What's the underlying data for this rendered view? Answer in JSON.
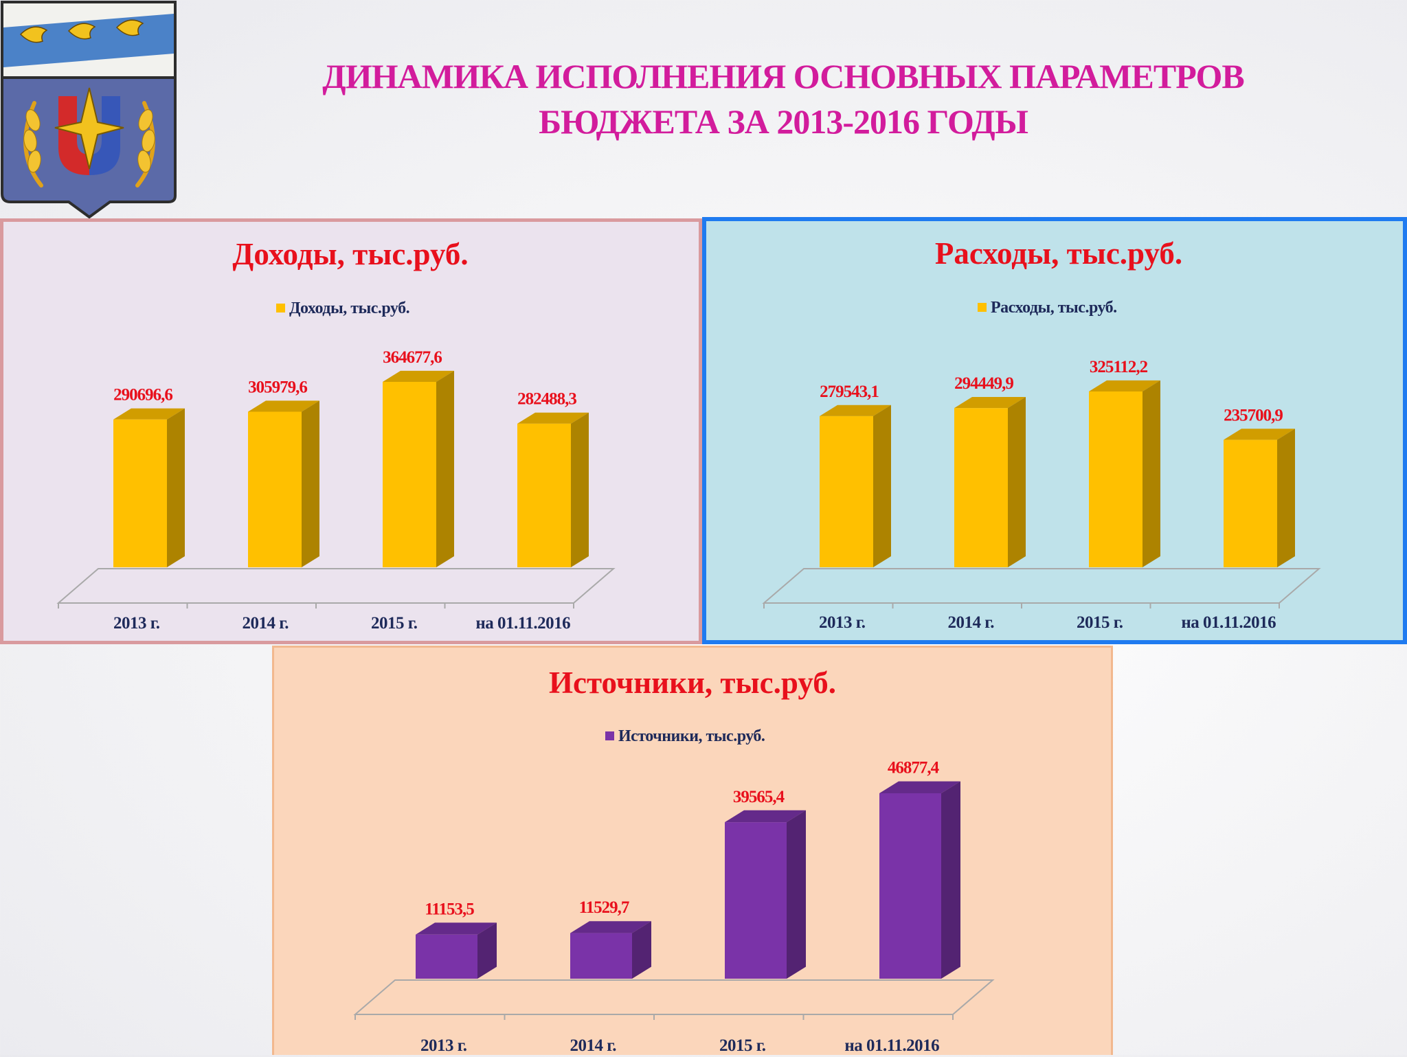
{
  "header": {
    "title_line1": "ДИНАМИКА ИСПОЛНЕНИЯ ОСНОВНЫХ ПАРАМЕТРОВ",
    "title_line2": "БЮДЖЕТА ЗА 2013-2016 ГОДЫ"
  },
  "emblem": {
    "name": "coat-of-arms"
  },
  "colors": {
    "title": "#d21c9c",
    "chart_title": "#e8101c",
    "value_label": "#e8101c",
    "axis_label": "#1e2a5a",
    "bar_gold": "#ffc000",
    "bar_purple": "#7a33a8"
  },
  "chart_data": [
    {
      "id": "income",
      "type": "bar",
      "title": "Доходы, тыс.руб.",
      "categories": [
        "2013 г.",
        "2014 г.",
        "2015 г.",
        "на 01.11.2016"
      ],
      "series": [
        {
          "name": "Доходы, тыс.руб.",
          "values": [
            290696.6,
            305979.6,
            364677.6,
            282488.3
          ]
        }
      ],
      "value_labels": [
        "290696,6",
        "305979,6",
        "364677,6",
        "282488,3"
      ],
      "legend": "top",
      "grid": false
    },
    {
      "id": "expense",
      "type": "bar",
      "title": "Расходы, тыс.руб.",
      "categories": [
        "2013 г.",
        "2014 г.",
        "2015 г.",
        "на 01.11.2016"
      ],
      "series": [
        {
          "name": "Расходы, тыс.руб.",
          "values": [
            279543.1,
            294449.9,
            325112.2,
            235700.9
          ]
        }
      ],
      "value_labels": [
        "279543,1",
        "294449,9",
        "325112,2",
        "235700,9"
      ],
      "legend": "top",
      "grid": false
    },
    {
      "id": "sources",
      "type": "bar",
      "title": "Источники, тыс.руб.",
      "categories": [
        "2013 г.",
        "2014 г.",
        "2015 г.",
        "на 01.11.2016"
      ],
      "series": [
        {
          "name": "Источники, тыс.руб.",
          "values": [
            11153.5,
            11529.7,
            39565.4,
            46877.4
          ]
        }
      ],
      "value_labels": [
        "11153,5",
        "11529,7",
        "39565,4",
        "46877,4"
      ],
      "legend": "top",
      "grid": false
    }
  ]
}
